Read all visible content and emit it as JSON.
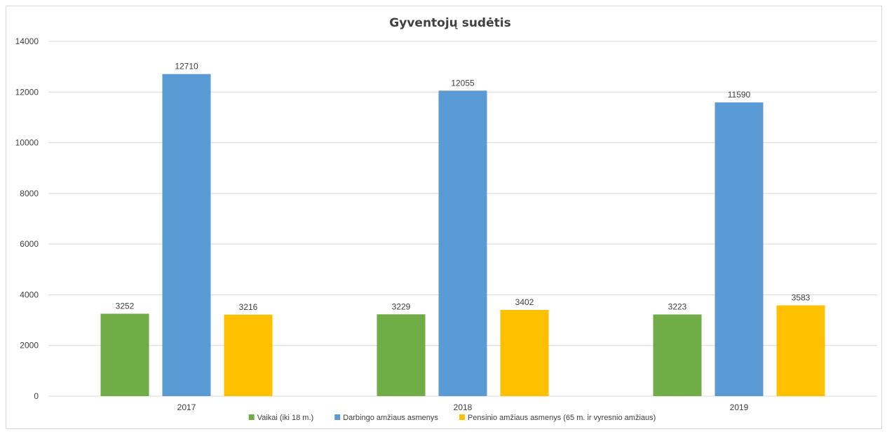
{
  "chart_data": {
    "type": "bar",
    "title": "Gyventojų sudėtis",
    "xlabel": "",
    "ylabel": "",
    "categories": [
      "2017",
      "2018",
      "2019"
    ],
    "ylim": [
      0,
      14000
    ],
    "yticks": [
      0,
      2000,
      4000,
      6000,
      8000,
      10000,
      12000,
      14000
    ],
    "grid": true,
    "legend_position": "bottom",
    "series": [
      {
        "name": "Vaikai (iki 18 m.)",
        "color": "#70ad47",
        "values": [
          3252,
          3229,
          3223
        ]
      },
      {
        "name": "Darbingo amžiaus asmenys",
        "color": "#5b9bd5",
        "values": [
          12710,
          12055,
          11590
        ]
      },
      {
        "name": "Pensinio amžiaus asmenys (65 m. ir vyresnio amžiaus)",
        "color": "#ffc000",
        "values": [
          3216,
          3402,
          3583
        ]
      }
    ]
  }
}
